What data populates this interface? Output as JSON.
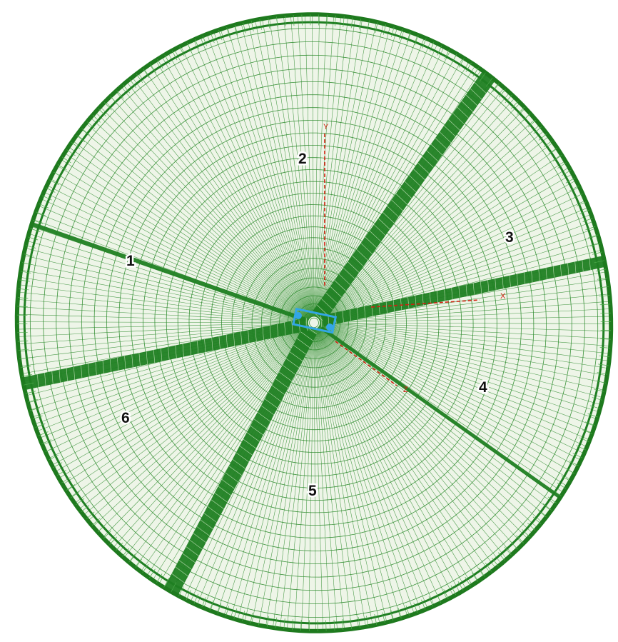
{
  "colors": {
    "mesh": "#2a8a2a",
    "mesh_dense": "#1f7f22",
    "rib_edge": "#1e7a1e",
    "node": "#33a6e6",
    "axis": "#d02010",
    "panel_fill": "#eef5e8"
  },
  "segments": [
    {
      "id": "1",
      "label": "1"
    },
    {
      "id": "2",
      "label": "2"
    },
    {
      "id": "3",
      "label": "3"
    },
    {
      "id": "4",
      "label": "4"
    },
    {
      "id": "5",
      "label": "5"
    },
    {
      "id": "6",
      "label": "6"
    }
  ],
  "axes": {
    "x_label": "X",
    "y_label": "Y",
    "z_label": "Z"
  }
}
